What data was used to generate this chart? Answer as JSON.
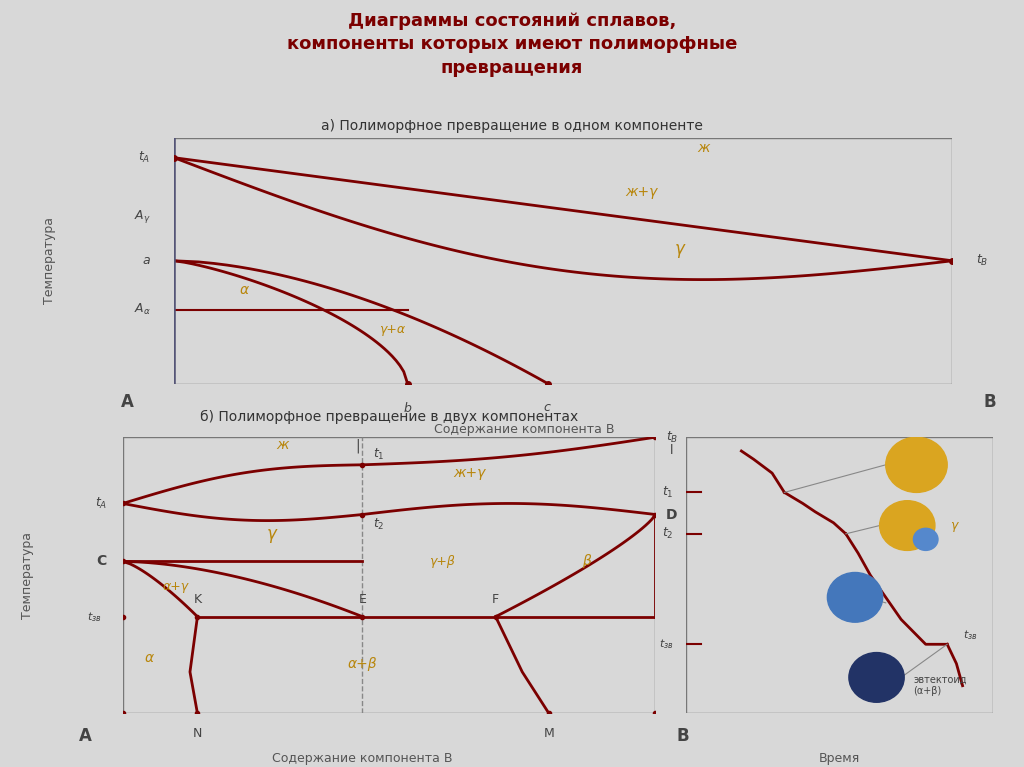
{
  "title": "Диаграммы состояний сплавов,\nкомпоненты которых имеют полиморфные\nпревращения",
  "title_color": "#7B0000",
  "title_fontsize": 13,
  "bg_color": "#d8d8d8",
  "panel_bg": "#f0eeee",
  "line_color": "#7B0000",
  "gold": "#B8860B",
  "dark": "#444444",
  "subtitle_a": "а) Полиморфное превращение в одном компоненте",
  "subtitle_b": "б) Полиморфное превращение в двух компонентах"
}
